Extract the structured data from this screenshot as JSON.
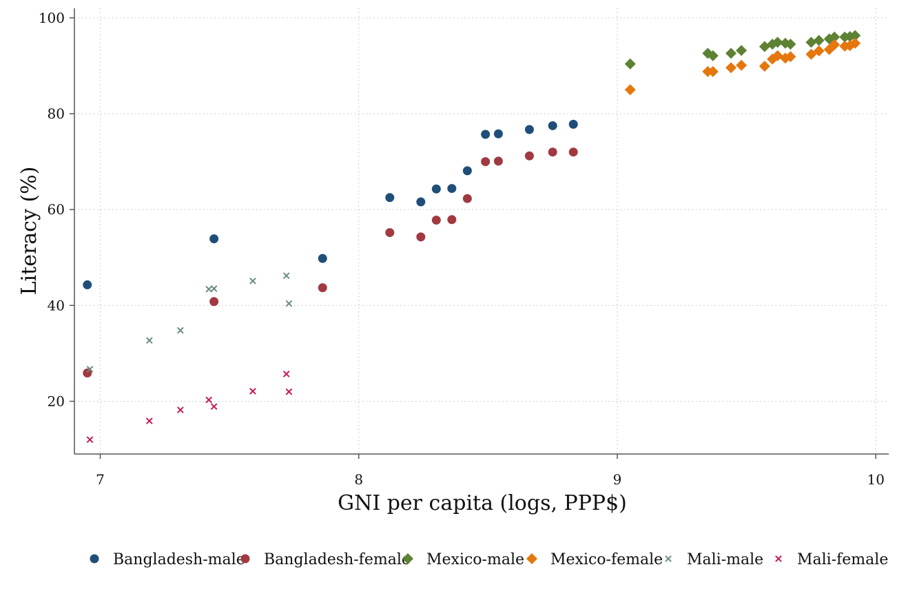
{
  "chart_data": {
    "type": "scatter",
    "xlabel": "GNI per capita (logs, PPP$)",
    "ylabel": "Literacy (%)",
    "xlim": [
      6.9,
      10.05
    ],
    "ylim": [
      9,
      102
    ],
    "x_ticks": [
      7,
      8,
      9,
      10
    ],
    "y_ticks": [
      20,
      40,
      60,
      80,
      100
    ],
    "grid": true,
    "legend_position": "bottom",
    "series": [
      {
        "name": "Bangladesh-male",
        "marker": "circle",
        "color": "#1f4e79",
        "points": [
          [
            6.95,
            44.3
          ],
          [
            7.44,
            53.9
          ],
          [
            7.86,
            49.8
          ],
          [
            8.12,
            62.5
          ],
          [
            8.24,
            61.6
          ],
          [
            8.3,
            64.3
          ],
          [
            8.36,
            64.4
          ],
          [
            8.42,
            68.1
          ],
          [
            8.49,
            75.7
          ],
          [
            8.54,
            75.8
          ],
          [
            8.66,
            76.7
          ],
          [
            8.75,
            77.5
          ],
          [
            8.83,
            77.8
          ]
        ]
      },
      {
        "name": "Bangladesh-female",
        "marker": "circle",
        "color": "#a13941",
        "points": [
          [
            6.95,
            25.9
          ],
          [
            7.44,
            40.8
          ],
          [
            7.86,
            43.7
          ],
          [
            8.12,
            55.2
          ],
          [
            8.24,
            54.3
          ],
          [
            8.3,
            57.8
          ],
          [
            8.36,
            57.9
          ],
          [
            8.42,
            62.3
          ],
          [
            8.49,
            70.0
          ],
          [
            8.54,
            70.1
          ],
          [
            8.66,
            71.2
          ],
          [
            8.75,
            72.0
          ],
          [
            8.83,
            72.0
          ]
        ]
      },
      {
        "name": "Mexico-male",
        "marker": "diamond",
        "color": "#5d8233",
        "points": [
          [
            9.05,
            90.4
          ],
          [
            9.35,
            92.6
          ],
          [
            9.37,
            92.1
          ],
          [
            9.44,
            92.6
          ],
          [
            9.48,
            93.2
          ],
          [
            9.57,
            94.0
          ],
          [
            9.6,
            94.5
          ],
          [
            9.62,
            94.9
          ],
          [
            9.65,
            94.7
          ],
          [
            9.67,
            94.5
          ],
          [
            9.75,
            94.9
          ],
          [
            9.78,
            95.3
          ],
          [
            9.82,
            95.6
          ],
          [
            9.84,
            96.0
          ],
          [
            9.88,
            96.0
          ],
          [
            9.9,
            96.1
          ],
          [
            9.92,
            96.3
          ]
        ]
      },
      {
        "name": "Mexico-female",
        "marker": "diamond",
        "color": "#e5770e",
        "points": [
          [
            9.05,
            85.0
          ],
          [
            9.35,
            88.8
          ],
          [
            9.37,
            88.8
          ],
          [
            9.44,
            89.6
          ],
          [
            9.48,
            90.1
          ],
          [
            9.57,
            89.9
          ],
          [
            9.6,
            91.4
          ],
          [
            9.62,
            92.1
          ],
          [
            9.65,
            91.6
          ],
          [
            9.67,
            91.9
          ],
          [
            9.75,
            92.4
          ],
          [
            9.78,
            93.1
          ],
          [
            9.82,
            93.4
          ],
          [
            9.84,
            94.4
          ],
          [
            9.88,
            94.1
          ],
          [
            9.9,
            94.2
          ],
          [
            9.92,
            94.7
          ]
        ]
      },
      {
        "name": "Mali-male",
        "marker": "x",
        "color": "#6b8c80",
        "points": [
          [
            6.96,
            26.7
          ],
          [
            7.19,
            32.7
          ],
          [
            7.31,
            34.8
          ],
          [
            7.42,
            43.4
          ],
          [
            7.44,
            43.5
          ],
          [
            7.59,
            45.1
          ],
          [
            7.72,
            46.2
          ],
          [
            7.73,
            40.4
          ]
        ]
      },
      {
        "name": "Mali-female",
        "marker": "x",
        "color": "#c2185b",
        "points": [
          [
            6.96,
            12.0
          ],
          [
            7.19,
            15.9
          ],
          [
            7.31,
            18.2
          ],
          [
            7.42,
            20.3
          ],
          [
            7.44,
            18.9
          ],
          [
            7.59,
            22.1
          ],
          [
            7.72,
            25.7
          ],
          [
            7.73,
            22.0
          ]
        ]
      }
    ]
  }
}
